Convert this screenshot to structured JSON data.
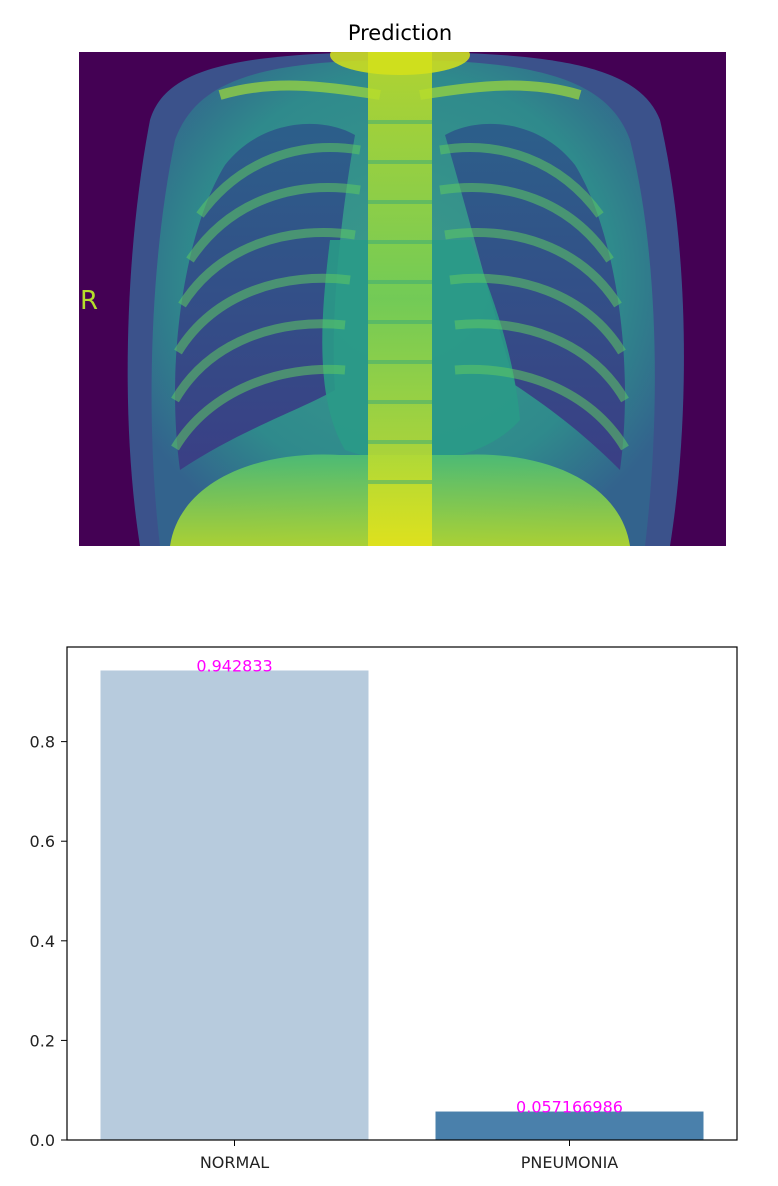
{
  "image_panel": {
    "title": "Prediction",
    "marker_letter": "R",
    "colormap": "viridis"
  },
  "chart_data": {
    "type": "bar",
    "categories": [
      "NORMAL",
      "PNEUMONIA"
    ],
    "values": [
      0.942833,
      0.057166986
    ],
    "value_labels": [
      "0.942833",
      "0.057166986"
    ],
    "bar_colors": [
      "#b7cbdd",
      "#4a80ab"
    ],
    "label_color": "#ff00ff",
    "title": "",
    "xlabel": "",
    "ylabel": "",
    "ylim": [
      0,
      0.99
    ],
    "yticks": [
      0.0,
      0.2,
      0.4,
      0.6,
      0.8
    ],
    "ytick_labels": [
      "0.0",
      "0.2",
      "0.4",
      "0.6",
      "0.8"
    ],
    "grid": false,
    "legend": "none"
  }
}
